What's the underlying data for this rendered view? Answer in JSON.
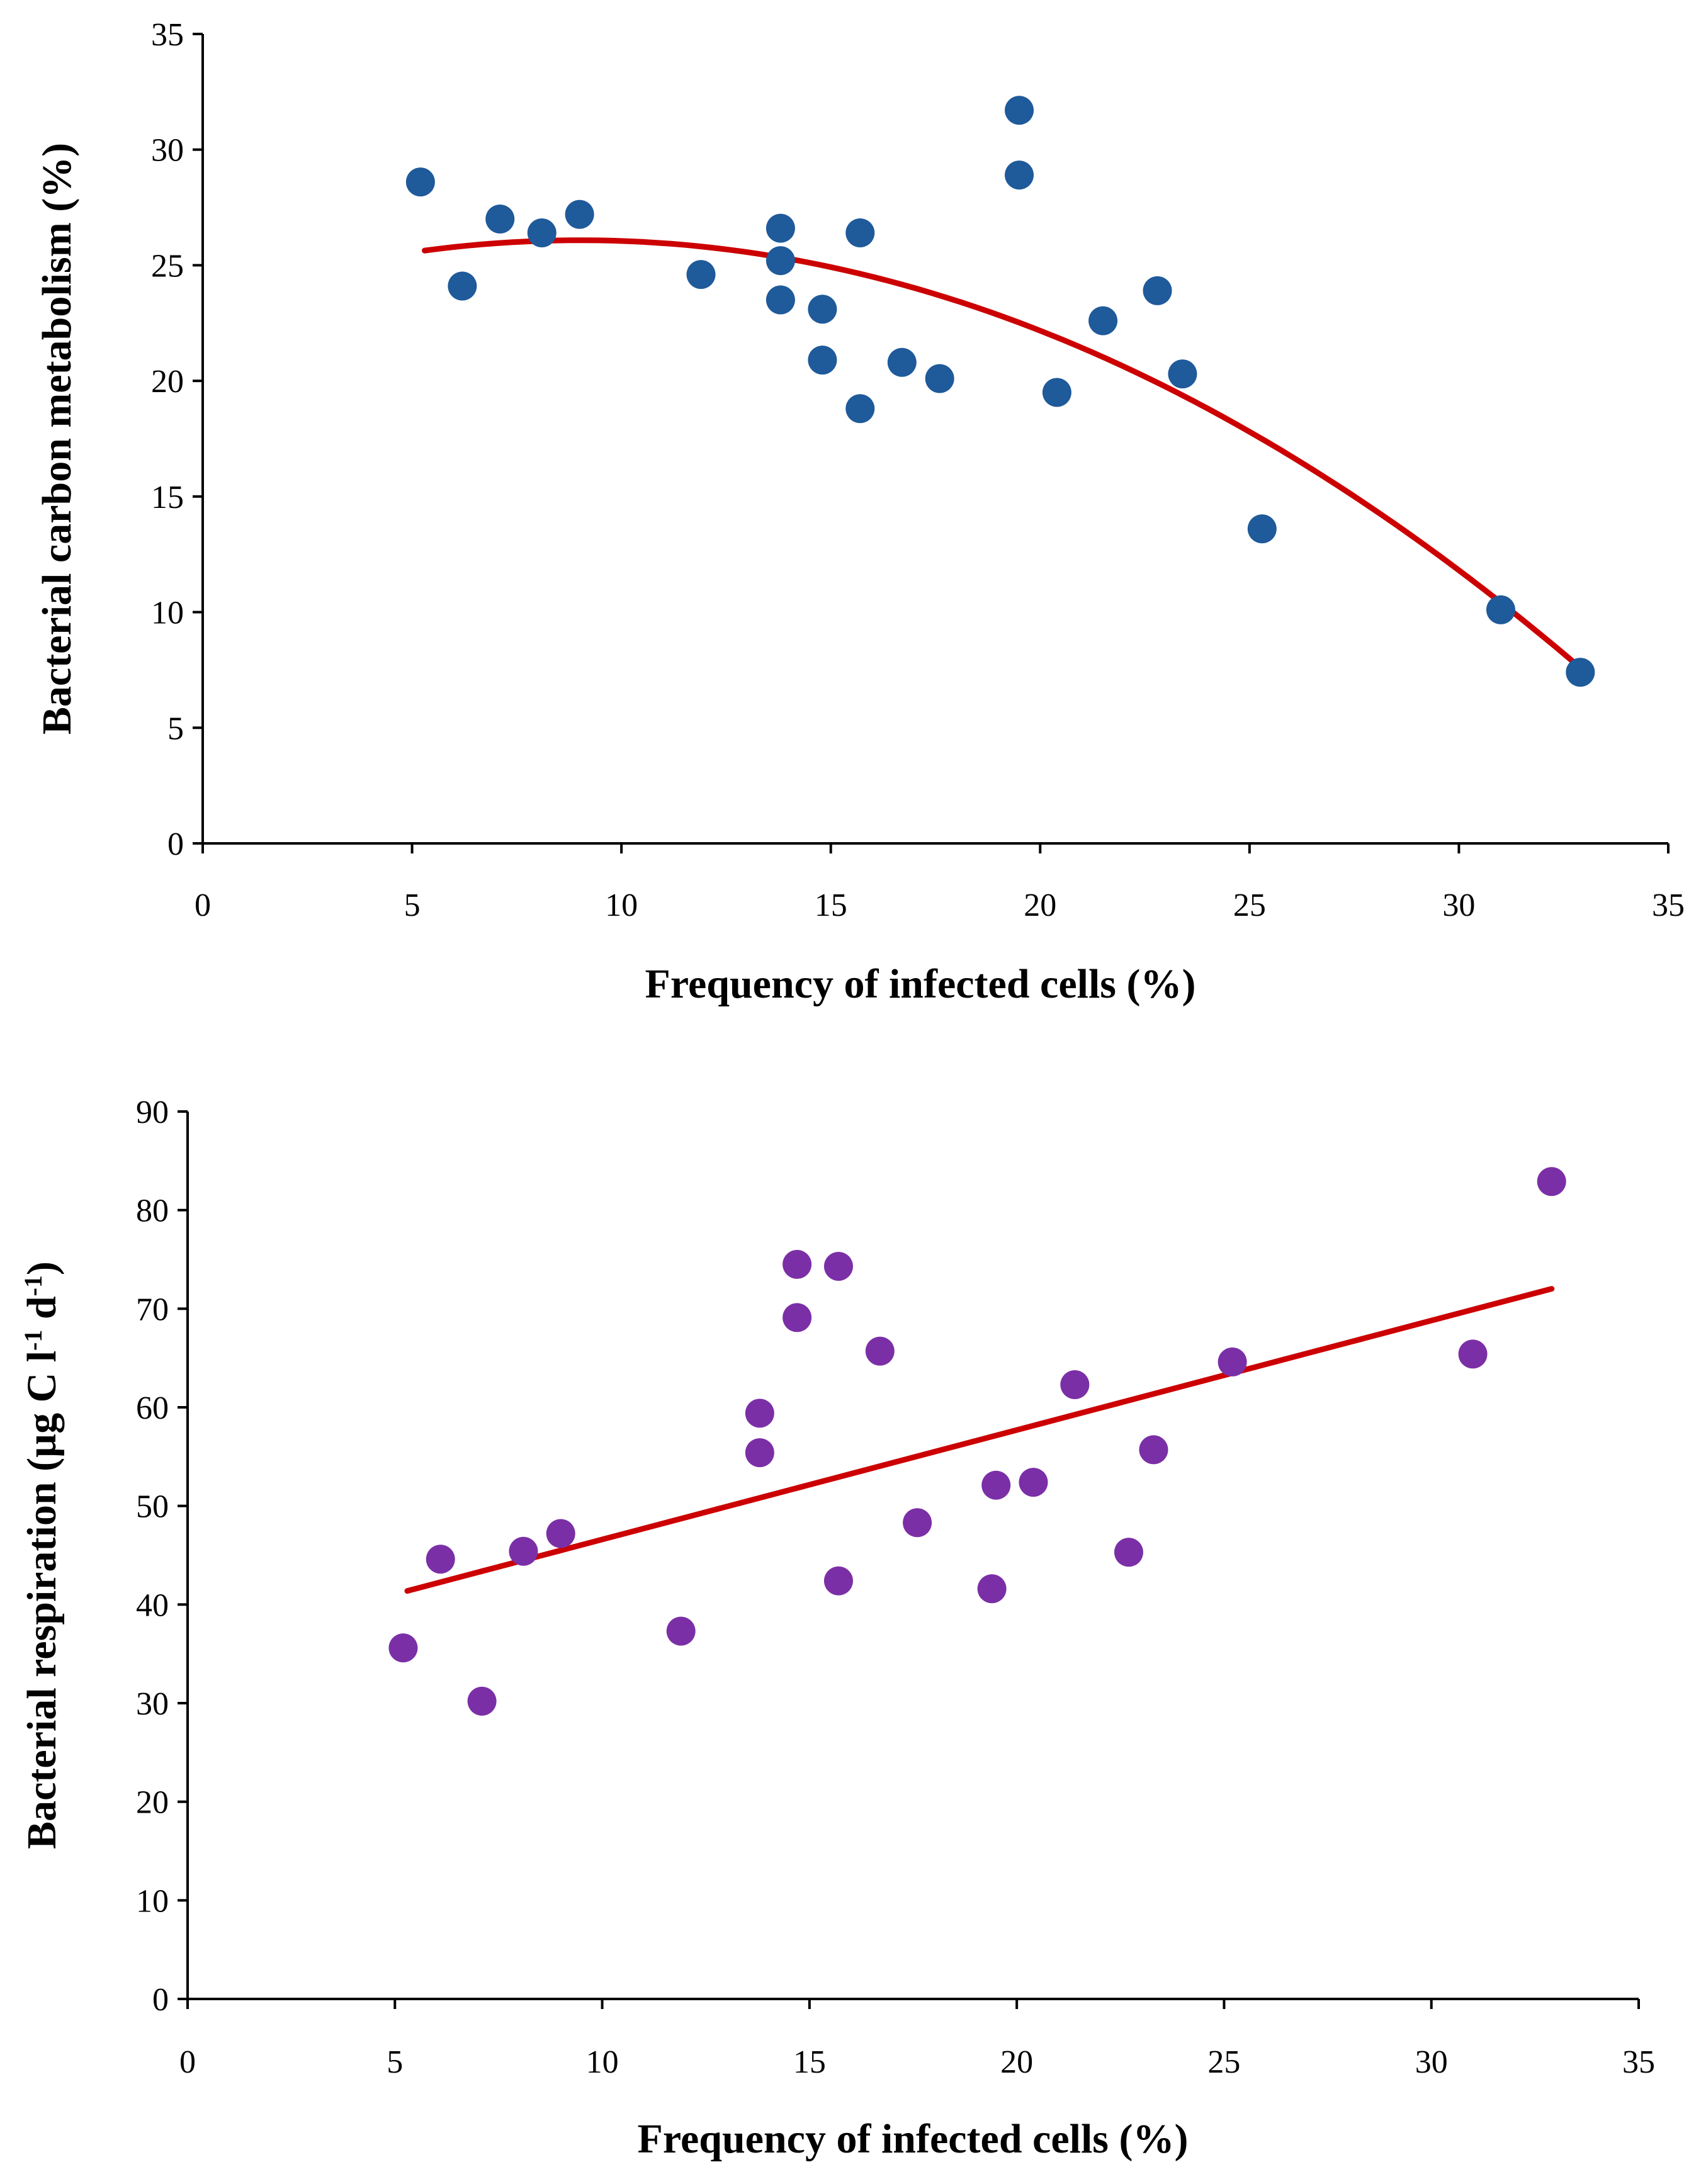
{
  "chart_data": [
    {
      "type": "scatter",
      "id": "carbon",
      "xlabel": "Frequency  of infected cells (%)",
      "ylabel": "Bacterial carbon metabolism (%)",
      "xlim": [
        0,
        35
      ],
      "ylim": [
        0,
        35
      ],
      "xticks": [
        0,
        5,
        10,
        15,
        20,
        25,
        30,
        35
      ],
      "yticks": [
        0,
        5,
        10,
        15,
        20,
        25,
        30,
        35
      ],
      "marker_color": "#1f5a9a",
      "trend_color": "#cc0000",
      "trend": {
        "kind": "quadratic",
        "coefficients": [
          23.45,
          0.584,
          -0.0324
        ],
        "x_range": [
          5.3,
          33.0
        ]
      },
      "points": [
        {
          "x": 5.2,
          "y": 28.6
        },
        {
          "x": 6.2,
          "y": 24.1
        },
        {
          "x": 7.1,
          "y": 27.0
        },
        {
          "x": 8.1,
          "y": 26.4
        },
        {
          "x": 9.0,
          "y": 27.2
        },
        {
          "x": 11.9,
          "y": 24.6
        },
        {
          "x": 13.8,
          "y": 26.6
        },
        {
          "x": 13.8,
          "y": 25.2
        },
        {
          "x": 13.8,
          "y": 23.5
        },
        {
          "x": 14.8,
          "y": 23.1
        },
        {
          "x": 14.8,
          "y": 20.9
        },
        {
          "x": 15.7,
          "y": 26.4
        },
        {
          "x": 15.7,
          "y": 18.8
        },
        {
          "x": 16.7,
          "y": 20.8
        },
        {
          "x": 17.6,
          "y": 20.1
        },
        {
          "x": 19.5,
          "y": 31.7
        },
        {
          "x": 19.5,
          "y": 28.9
        },
        {
          "x": 20.4,
          "y": 19.5
        },
        {
          "x": 21.5,
          "y": 22.6
        },
        {
          "x": 22.8,
          "y": 23.9
        },
        {
          "x": 23.4,
          "y": 20.3
        },
        {
          "x": 25.3,
          "y": 13.6
        },
        {
          "x": 31.0,
          "y": 10.1
        },
        {
          "x": 32.9,
          "y": 7.4
        }
      ]
    },
    {
      "type": "scatter",
      "id": "respiration",
      "xlabel": "Frequency  of infected cells (%)",
      "ylabel_parts": [
        "Bacterial respiration (µg C l",
        "-1",
        " d",
        "-1",
        ")"
      ],
      "xlim": [
        0,
        35
      ],
      "ylim": [
        0,
        90
      ],
      "xticks": [
        0,
        5,
        10,
        15,
        20,
        25,
        30,
        35
      ],
      "yticks": [
        0,
        10,
        20,
        30,
        40,
        50,
        60,
        70,
        80,
        90
      ],
      "marker_color": "#7b2fa6",
      "trend_color": "#cc0000",
      "trend": {
        "kind": "linear",
        "coefficients": [
          35.5,
          1.11
        ],
        "x_range": [
          5.3,
          32.9
        ]
      },
      "points": [
        {
          "x": 5.2,
          "y": 35.6
        },
        {
          "x": 6.1,
          "y": 44.6
        },
        {
          "x": 7.1,
          "y": 30.2
        },
        {
          "x": 8.1,
          "y": 45.4
        },
        {
          "x": 9.0,
          "y": 47.2
        },
        {
          "x": 11.9,
          "y": 37.3
        },
        {
          "x": 13.8,
          "y": 59.4
        },
        {
          "x": 13.8,
          "y": 55.4
        },
        {
          "x": 14.7,
          "y": 74.5
        },
        {
          "x": 14.7,
          "y": 69.1
        },
        {
          "x": 15.7,
          "y": 74.3
        },
        {
          "x": 15.7,
          "y": 42.4
        },
        {
          "x": 16.7,
          "y": 65.7
        },
        {
          "x": 17.6,
          "y": 48.3
        },
        {
          "x": 19.5,
          "y": 52.1
        },
        {
          "x": 19.4,
          "y": 41.6
        },
        {
          "x": 20.4,
          "y": 52.4
        },
        {
          "x": 21.4,
          "y": 62.3
        },
        {
          "x": 22.7,
          "y": 45.3
        },
        {
          "x": 23.3,
          "y": 55.7
        },
        {
          "x": 25.2,
          "y": 64.6
        },
        {
          "x": 31.0,
          "y": 65.4
        },
        {
          "x": 32.9,
          "y": 82.9
        }
      ]
    }
  ]
}
